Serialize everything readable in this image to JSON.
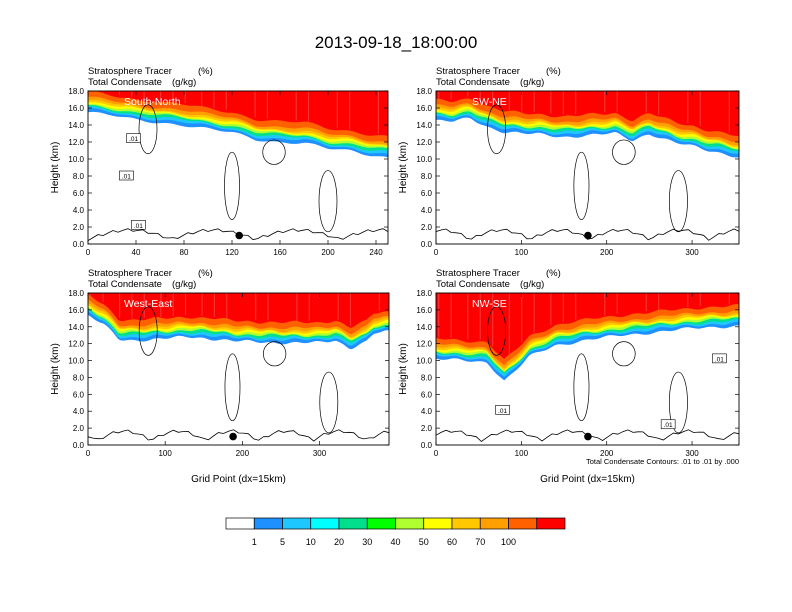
{
  "title": "2013-09-18_18:00:00",
  "colors": {
    "levels": [
      "#ffffff",
      "#1e90ff",
      "#1ec8ff",
      "#00ffff",
      "#00e08c",
      "#00ff00",
      "#b0ff30",
      "#ffff00",
      "#ffc800",
      "#ffa000",
      "#ff6000",
      "#ff0000"
    ],
    "contour": "#000000"
  },
  "colorbar": {
    "labels": [
      "1",
      "5",
      "10",
      "20",
      "30",
      "40",
      "50",
      "60",
      "70",
      "100"
    ]
  },
  "chart_data": [
    {
      "type": "heatmap",
      "panel_label": "South-North",
      "subtitle_left": "Stratosphere Tracer",
      "subtitle_left2": "Total Condensate",
      "units1": "(%)",
      "units2": "(g/kg)",
      "ylabel": "Height (km)",
      "xlabel": "",
      "ylim": [
        0,
        18
      ],
      "xlim": [
        0,
        250
      ],
      "yticks": [
        "0.0",
        "2.0",
        "4.0",
        "6.0",
        "8.0",
        "10.0",
        "12.0",
        "14.0",
        "16.0",
        "18.0"
      ],
      "xticks": [
        0,
        40,
        80,
        120,
        160,
        200,
        240
      ],
      "tropopause_km": [
        [
          0,
          15.5
        ],
        [
          20,
          15.1
        ],
        [
          40,
          14.6
        ],
        [
          60,
          14.3
        ],
        [
          80,
          14.0
        ],
        [
          100,
          13.5
        ],
        [
          120,
          13.1
        ],
        [
          140,
          12.3
        ],
        [
          160,
          12.0
        ],
        [
          180,
          11.9
        ],
        [
          200,
          11.2
        ],
        [
          220,
          10.9
        ],
        [
          235,
          10.5
        ],
        [
          250,
          10.2
        ]
      ],
      "marker": {
        "x": 126,
        "y": 1.0
      },
      "contour_labels": [
        {
          "text": ".01",
          "x": 38,
          "y": 12.4
        },
        {
          "text": ".01",
          "x": 32,
          "y": 8.0
        },
        {
          "text": ".01",
          "x": 42,
          "y": 2.2
        }
      ]
    },
    {
      "type": "heatmap",
      "panel_label": "SW-NE",
      "subtitle_left": "Stratosphere Tracer",
      "subtitle_left2": "Total Condensate",
      "units1": "(%)",
      "units2": "(g/kg)",
      "ylabel": "Height (km)",
      "xlabel": "",
      "ylim": [
        0,
        18
      ],
      "xlim": [
        0,
        355
      ],
      "yticks": [
        "0.0",
        "2.0",
        "4.0",
        "6.0",
        "8.0",
        "10.0",
        "12.0",
        "14.0",
        "16.0",
        "18.0"
      ],
      "xticks": [
        0,
        100,
        200,
        300
      ],
      "tropopause_km": [
        [
          0,
          14.5
        ],
        [
          20,
          14.4
        ],
        [
          40,
          14.8
        ],
        [
          60,
          13.8
        ],
        [
          80,
          13.2
        ],
        [
          100,
          13.0
        ],
        [
          120,
          12.9
        ],
        [
          150,
          12.6
        ],
        [
          180,
          12.8
        ],
        [
          210,
          13.0
        ],
        [
          230,
          12.2
        ],
        [
          250,
          13.0
        ],
        [
          280,
          11.9
        ],
        [
          300,
          11.5
        ],
        [
          320,
          11.0
        ],
        [
          340,
          10.6
        ],
        [
          355,
          10.2
        ]
      ],
      "marker": {
        "x": 178,
        "y": 1.0
      },
      "contour_labels": []
    },
    {
      "type": "heatmap",
      "panel_label": "West-East",
      "subtitle_left": "Stratosphere Tracer",
      "subtitle_left2": "Total Condensate",
      "units1": "(%)",
      "units2": "(g/kg)",
      "ylabel": "Height (km)",
      "xlabel": "Grid Point (dx=15km)",
      "ylim": [
        0,
        18
      ],
      "xlim": [
        0,
        390
      ],
      "yticks": [
        "0.0",
        "2.0",
        "4.0",
        "6.0",
        "8.0",
        "10.0",
        "12.0",
        "14.0",
        "16.0",
        "18.0"
      ],
      "xticks": [
        0,
        100,
        200,
        300
      ],
      "tropopause_km": [
        [
          0,
          15.3
        ],
        [
          20,
          14.3
        ],
        [
          40,
          12.5
        ],
        [
          60,
          12.4
        ],
        [
          100,
          12.6
        ],
        [
          130,
          12.8
        ],
        [
          160,
          12.6
        ],
        [
          190,
          12.3
        ],
        [
          220,
          12.2
        ],
        [
          260,
          12.1
        ],
        [
          300,
          12.1
        ],
        [
          320,
          12.4
        ],
        [
          340,
          11.5
        ],
        [
          360,
          12.2
        ],
        [
          370,
          13.2
        ],
        [
          390,
          13.4
        ]
      ],
      "marker": {
        "x": 188,
        "y": 1.0
      },
      "contour_labels": []
    },
    {
      "type": "heatmap",
      "panel_label": "NW-SE",
      "subtitle_left": "Stratosphere Tracer",
      "subtitle_left2": "Total Condensate",
      "units1": "(%)",
      "units2": "(g/kg)",
      "ylabel": "",
      "xlabel": "Grid Point (dx=15km)",
      "ylim": [
        0,
        18
      ],
      "xlim": [
        0,
        355
      ],
      "yticks": [
        "0.0",
        "2.0",
        "4.0",
        "6.0",
        "8.0",
        "10.0",
        "12.0",
        "14.0",
        "16.0",
        "18.0"
      ],
      "xticks": [
        0,
        100,
        200,
        300
      ],
      "tropopause_km": [
        [
          0,
          10.2
        ],
        [
          30,
          10.0
        ],
        [
          60,
          9.8
        ],
        [
          80,
          7.6
        ],
        [
          95,
          9.0
        ],
        [
          110,
          10.5
        ],
        [
          140,
          11.8
        ],
        [
          180,
          12.5
        ],
        [
          220,
          13.0
        ],
        [
          260,
          13.4
        ],
        [
          300,
          13.8
        ],
        [
          330,
          14.0
        ],
        [
          355,
          14.1
        ]
      ],
      "marker": {
        "x": 178,
        "y": 1.0
      },
      "contour_labels": [
        {
          "text": ".01",
          "x": 332,
          "y": 10.2
        },
        {
          "text": ".01",
          "x": 78,
          "y": 4.1
        },
        {
          "text": ".01",
          "x": 272,
          "y": 2.4
        }
      ],
      "note": "Total Condensate Contours: .01 to .01 by .000"
    }
  ]
}
